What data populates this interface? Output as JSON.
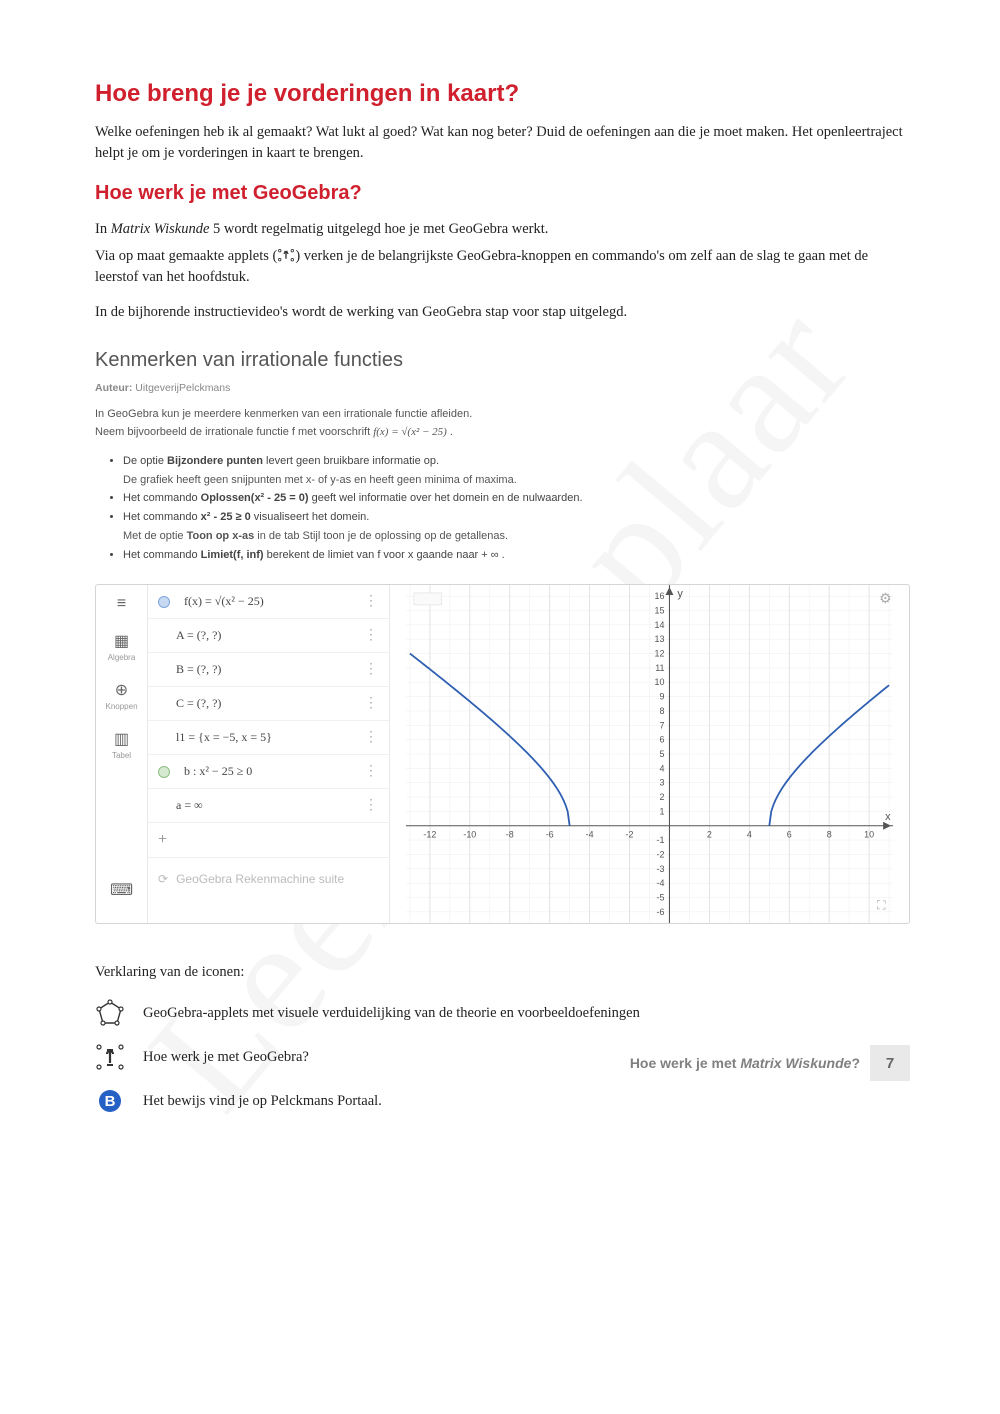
{
  "watermark": "Leerexemplaar",
  "h1": "Hoe breng je je vorderingen in kaart?",
  "p1": "Welke oefeningen heb ik al gemaakt? Wat lukt al goed? Wat kan nog beter? Duid de oefeningen aan die je moet maken. Het openleertraject helpt je om je vorderingen in kaart te brengen.",
  "h2": "Hoe werk je met GeoGebra?",
  "p2a": "In ",
  "p2b": "Matrix Wiskunde",
  "p2c": " 5 wordt regelmatig uitgelegd hoe je met GeoGebra werkt.",
  "p3a": "Via op maat gemaakte applets (",
  "p3b": ") verken je de belangrijkste GeoGebra-knoppen en commando's om zelf aan de slag te gaan met de leerstof van het hoofdstuk.",
  "p4": "In de bijhorende instructievideo's wordt de werking van GeoGebra stap voor stap uitgelegd.",
  "shot": {
    "title": "Kenmerken van irrationale functies",
    "author_label": "Auteur: ",
    "author_value": "UitgeverijPelckmans",
    "intro1": "In GeoGebra kun je meerdere kenmerken van een irrationale functie afleiden.",
    "intro2a": "Neem bijvoorbeeld de irrationale functie f met voorschrift  ",
    "intro2b": "f(x) = √(x² − 25)",
    "intro2c": " .",
    "bullets": [
      {
        "main_a": "De optie ",
        "main_bold": "Bijzondere punten",
        "main_b": " levert geen bruikbare informatie op.",
        "sub": "De grafiek heeft geen snijpunten met x- of y-as en heeft geen minima of maxima."
      },
      {
        "main_a": "Het commando ",
        "main_bold": "Oplossen(x² - 25 = 0)",
        "main_b": " geeft wel informatie over het domein en de nulwaarden.",
        "sub": ""
      },
      {
        "main_a": "Het commando ",
        "main_bold": "x² - 25  ≥  0",
        "main_b": " visualiseert het domein.",
        "sub_a": "Met de optie ",
        "sub_bold": "Toon op x-as",
        "sub_b": " in de tab Stijl toon je de oplossing op de getallenas."
      },
      {
        "main_a": "Het commando ",
        "main_bold": "Limiet(f, inf)",
        "main_b": " berekent de limiet van f voor x gaande naar + ∞ .",
        "sub": ""
      }
    ]
  },
  "alg": {
    "side": [
      {
        "glyph": "≡",
        "label": ""
      },
      {
        "glyph": "▦",
        "label": "Algebra"
      },
      {
        "glyph": "⊕",
        "label": "Knoppen"
      },
      {
        "glyph": "▥",
        "label": "Tabel"
      },
      {
        "glyph": "⌨",
        "label": ""
      }
    ],
    "rows": [
      {
        "dot": "filled",
        "text": "f(x)  =  √(x² − 25)"
      },
      {
        "dot": "none",
        "text": "A = (?, ?)"
      },
      {
        "dot": "none",
        "text": "B = (?, ?)"
      },
      {
        "dot": "none",
        "text": "C = (?, ?)"
      },
      {
        "dot": "none",
        "text": "l1  =  {x = −5, x = 5}"
      },
      {
        "dot": "filled2",
        "text": "b : x² − 25 ≥ 0"
      },
      {
        "dot": "none",
        "text": "a  =  ∞"
      }
    ],
    "plus": "+",
    "suite": "GeoGebra Rekenmachine suite"
  },
  "chart": {
    "xlim": [
      -13,
      11
    ],
    "ylim": [
      -6.5,
      16.5
    ],
    "xticks": [
      -12,
      -10,
      -8,
      -6,
      -4,
      -2,
      2,
      4,
      6,
      8,
      10
    ],
    "yticks": [
      -6,
      -5,
      -4,
      -3,
      -2,
      -1,
      1,
      2,
      3,
      4,
      5,
      6,
      7,
      8,
      9,
      10,
      11,
      12,
      13,
      14,
      15,
      16
    ],
    "grid_color": "#dddddd",
    "subgrid_color": "#f0f0f0",
    "axis_color": "#555555",
    "curve_color": "#2e5fb2",
    "curve_width": 1.8,
    "bg": "#ffffff",
    "label_x": "x",
    "label_y": "y",
    "tick_fontsize": 9,
    "label_color": "#555"
  },
  "legend": {
    "title": "Verklaring van de iconen:",
    "items": [
      {
        "icon": "polygon",
        "text": "GeoGebra-applets met visuele verduidelijking van de theorie en voorbeeldoefeningen"
      },
      {
        "icon": "info",
        "text": "Hoe werk je met GeoGebra?"
      },
      {
        "icon": "B",
        "text": "Het bewijs vind je op Pelckmans Portaal."
      }
    ]
  },
  "footer": {
    "text_a": "Hoe werk je met ",
    "text_em": "Matrix Wiskunde",
    "text_b": "?",
    "page": "7"
  },
  "colors": {
    "heading": "#d0202e",
    "body": "#222222",
    "icon_blue": "#2560c4"
  }
}
